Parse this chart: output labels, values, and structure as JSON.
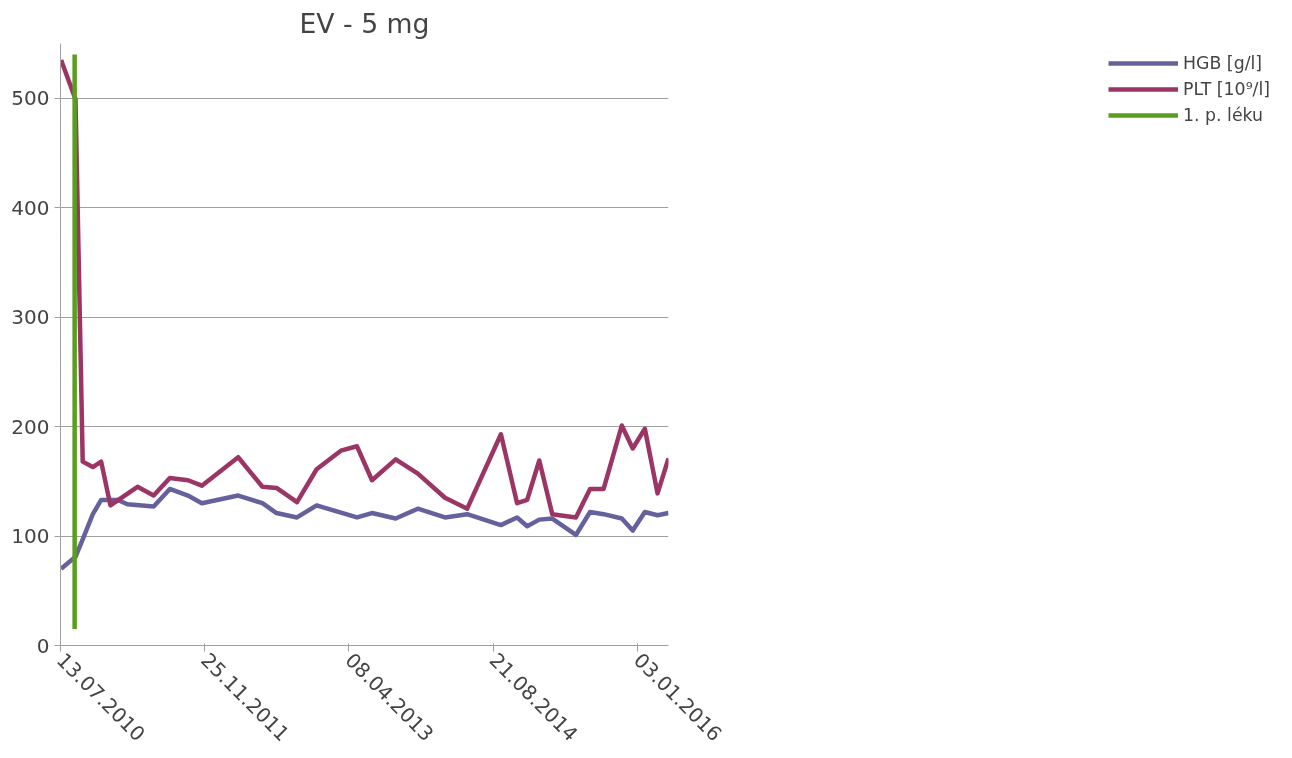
{
  "chart_data": {
    "type": "line",
    "title": "EV - 5 mg",
    "series": [
      {
        "name": "HGB [g/l]",
        "color": "#65619c",
        "x": [
          "2010-07-15",
          "2010-09-03",
          "2010-09-28",
          "2010-11-02",
          "2010-12-01",
          "2011-01-28",
          "2011-03-02",
          "2011-06-01",
          "2011-07-27",
          "2011-09-28",
          "2011-11-15",
          "2012-03-20",
          "2012-06-12",
          "2012-07-31",
          "2012-10-10",
          "2012-12-17",
          "2013-05-06",
          "2013-06-27",
          "2013-09-17",
          "2013-12-03",
          "2014-03-07",
          "2014-05-23",
          "2014-09-17",
          "2014-11-12",
          "2014-12-17",
          "2015-01-28",
          "2015-03-14",
          "2015-06-04",
          "2015-07-23",
          "2015-09-08",
          "2015-11-10",
          "2015-12-18",
          "2016-01-29",
          "2016-03-13",
          "2016-04-20"
        ],
        "values": [
          70,
          81,
          97,
          120,
          133,
          133,
          129,
          127,
          143,
          137,
          130,
          137,
          130,
          121,
          117,
          128,
          117,
          121,
          116,
          125,
          117,
          120,
          110,
          117,
          109,
          115,
          116,
          101,
          122,
          120,
          116,
          105,
          122,
          119,
          121
        ]
      },
      {
        "name": "PLT [10⁹/l]",
        "color": "#9b3565",
        "x": [
          "2010-07-15",
          "2010-09-03",
          "2010-09-28",
          "2010-11-02",
          "2010-12-01",
          "2011-01-02",
          "2011-04-06",
          "2011-06-01",
          "2011-07-27",
          "2011-09-28",
          "2011-11-15",
          "2012-03-20",
          "2012-06-12",
          "2012-07-31",
          "2012-10-10",
          "2012-12-17",
          "2013-03-11",
          "2013-05-06",
          "2013-06-27",
          "2013-09-17",
          "2013-12-03",
          "2014-03-07",
          "2014-05-23",
          "2014-09-17",
          "2014-11-12",
          "2014-12-17",
          "2015-01-28",
          "2015-03-14",
          "2015-06-04",
          "2015-07-23",
          "2015-09-08",
          "2015-11-10",
          "2015-12-18",
          "2016-01-29",
          "2016-03-13",
          "2016-04-20"
        ],
        "values": [
          535,
          499,
          168,
          163,
          168,
          128,
          145,
          137,
          153,
          151,
          146,
          172,
          145,
          144,
          131,
          161,
          178,
          182,
          151,
          170,
          157,
          135,
          125,
          193,
          130,
          133,
          169,
          120,
          117,
          143,
          143,
          201,
          180,
          198,
          139,
          171
        ]
      },
      {
        "name": "1. p. léku",
        "color": "#5a9e1f",
        "x": [
          "2010-08-31",
          "2010-08-31"
        ],
        "values": [
          15,
          540
        ]
      }
    ],
    "xlim": [
      "2010-07-13",
      "2016-04-20"
    ],
    "xticks": [
      {
        "value": "2010-07-13",
        "label": "13.07.2010"
      },
      {
        "value": "2011-11-25",
        "label": "25.11.2011"
      },
      {
        "value": "2013-04-08",
        "label": "08.04.2013"
      },
      {
        "value": "2014-08-21",
        "label": "21.08.2014"
      },
      {
        "value": "2016-01-03",
        "label": "03.01.2016"
      }
    ],
    "ylim": [
      0,
      550
    ],
    "yticks": [
      0,
      100,
      200,
      300,
      400,
      500
    ],
    "grid": "y",
    "legend": "right",
    "marker": "none",
    "line_style": "solid"
  }
}
